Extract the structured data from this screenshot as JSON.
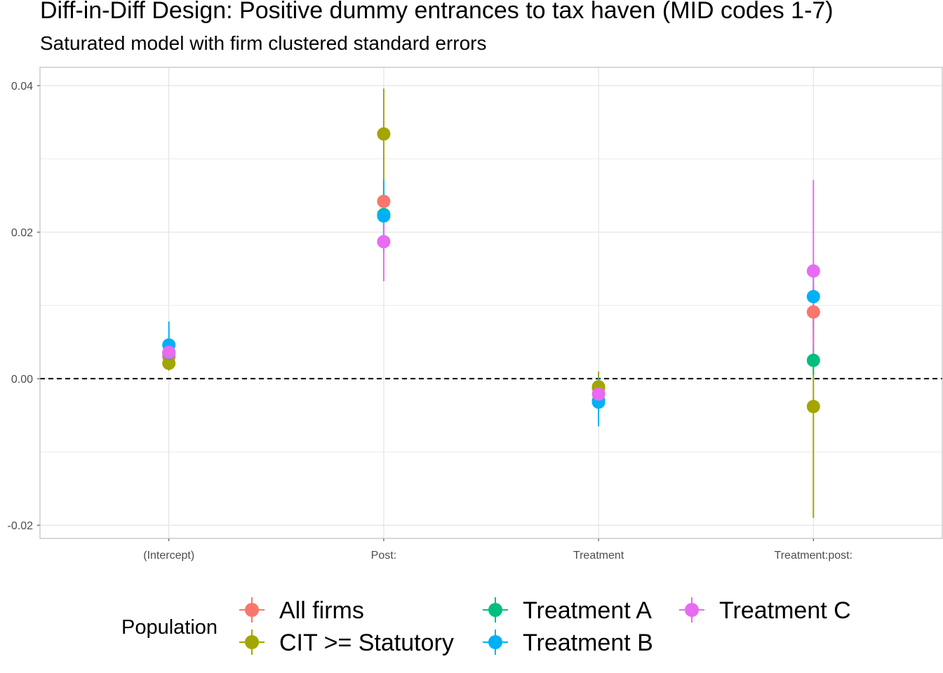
{
  "chart_data": {
    "type": "scatter",
    "title": "Diff-in-Diff Design: Positive dummy entrances to tax haven (MID codes 1-7)",
    "subtitle": "Saturated model with firm clustered standard errors",
    "xlabel": "",
    "ylabel": "",
    "categories": [
      "(Intercept)",
      "Post:",
      "Treatment",
      "Treatment:post:"
    ],
    "ylim": [
      -0.0218,
      0.0425
    ],
    "yticks": [
      -0.02,
      0.0,
      0.02,
      0.04
    ],
    "ytick_labels": [
      "-0.02",
      "0.00",
      "0.02",
      "0.04"
    ],
    "grid": true,
    "reference_line": {
      "y": 0,
      "style": "dashed"
    },
    "legend": {
      "title": "Population",
      "placement": "bottom",
      "items": [
        "All firms",
        "CIT >= Statutory",
        "Treatment A",
        "Treatment B",
        "Treatment C"
      ]
    },
    "series": [
      {
        "name": "All firms",
        "color": "#F8766D",
        "values": [
          0.003,
          0.0242,
          -0.0013,
          0.0091
        ],
        "lower": [
          0.0018,
          0.0215,
          -0.0025,
          0.0055
        ],
        "upper": [
          0.0042,
          0.0269,
          -0.0001,
          0.0127
        ]
      },
      {
        "name": "CIT >= Statutory",
        "color": "#A3A500",
        "values": [
          0.0021,
          0.0334,
          -0.0011,
          -0.0038
        ],
        "lower": [
          0.0011,
          0.0272,
          -0.0032,
          -0.019
        ],
        "upper": [
          0.0031,
          0.0396,
          0.001,
          0.0114
        ]
      },
      {
        "name": "Treatment A",
        "color": "#00BF7D",
        "values": [
          0.0035,
          0.0224,
          -0.003,
          0.0025
        ],
        "lower": [
          0.0023,
          0.0195,
          -0.0045,
          0.0005
        ],
        "upper": [
          0.0047,
          0.0253,
          -0.0015,
          0.0045
        ]
      },
      {
        "name": "Treatment B",
        "color": "#00B0F6",
        "values": [
          0.0046,
          0.0222,
          -0.0032,
          0.0112
        ],
        "lower": [
          0.0014,
          0.0172,
          -0.0065,
          0.0075
        ],
        "upper": [
          0.0078,
          0.0272,
          0.0001,
          0.0149
        ]
      },
      {
        "name": "Treatment C",
        "color": "#E76BF3",
        "values": [
          0.0036,
          0.0187,
          -0.0021,
          0.0147
        ],
        "lower": [
          0.0024,
          0.0133,
          -0.0035,
          0.0023
        ],
        "upper": [
          0.0048,
          0.0241,
          -0.0007,
          0.0271
        ]
      }
    ]
  }
}
